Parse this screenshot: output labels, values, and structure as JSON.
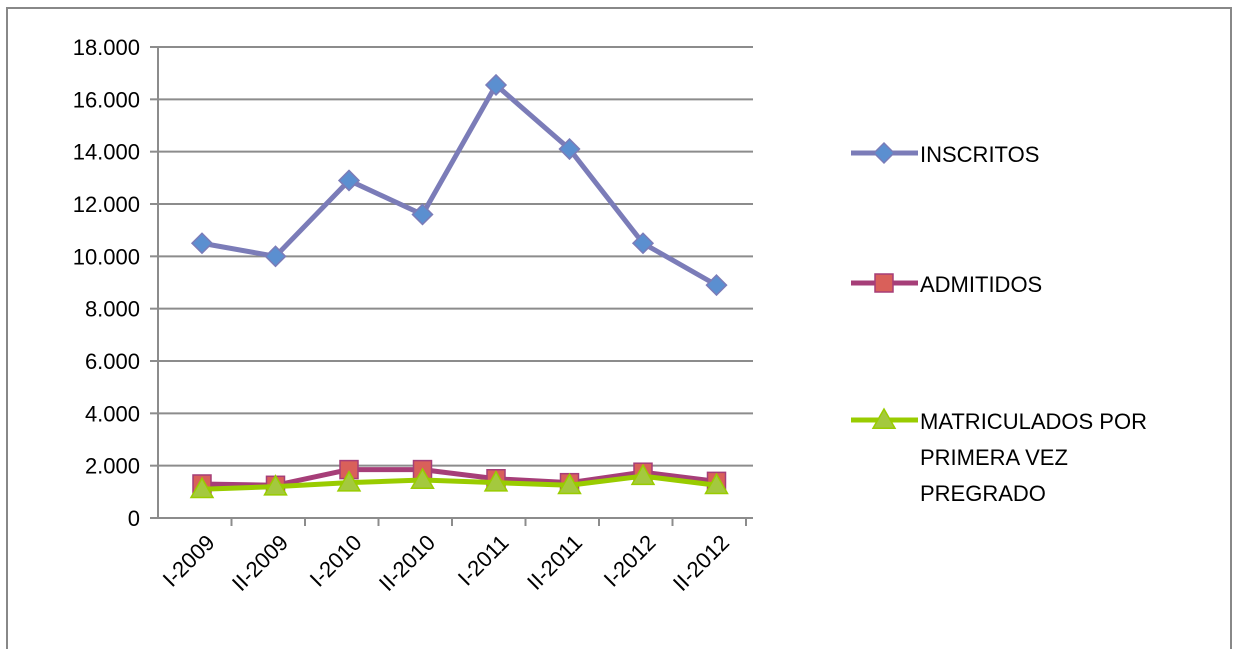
{
  "chart_data": {
    "type": "line",
    "title": "",
    "xlabel": "",
    "ylabel": "",
    "categories": [
      "I-2009",
      "II-2009",
      "I-2010",
      "II-2010",
      "I-2011",
      "II-2011",
      "I-2012",
      "II-2012"
    ],
    "ylim": [
      0,
      18000
    ],
    "yticks": [
      0,
      2000,
      4000,
      6000,
      8000,
      10000,
      12000,
      14000,
      16000,
      18000
    ],
    "ytick_labels": [
      "0",
      "2.000",
      "4.000",
      "6.000",
      "8.000",
      "10.000",
      "12.000",
      "14.000",
      "16.000",
      "18.000"
    ],
    "grid": true,
    "legend_position": "right",
    "series": [
      {
        "name": "INSCRITOS",
        "legend_lines": [
          "INSCRITOS"
        ],
        "marker": "diamond",
        "color": "#7b7cb8",
        "marker_color": "#5b8fd0",
        "values": [
          10500,
          10000,
          12900,
          11600,
          16550,
          14100,
          10500,
          8900
        ]
      },
      {
        "name": "ADMITIDOS",
        "legend_lines": [
          "ADMITIDOS"
        ],
        "marker": "square",
        "color": "#a63e78",
        "marker_color": "#d9605a",
        "values": [
          1300,
          1250,
          1850,
          1850,
          1500,
          1350,
          1750,
          1400
        ]
      },
      {
        "name": "MATRICULADOS POR PRIMERA VEZ PREGRADO",
        "legend_lines": [
          "MATRICULADOS POR",
          "PRIMERA VEZ",
          "PREGRADO"
        ],
        "marker": "triangle",
        "color": "#99cc00",
        "marker_color": "#a4c93e",
        "values": [
          1100,
          1200,
          1350,
          1450,
          1350,
          1250,
          1600,
          1250
        ]
      }
    ]
  }
}
